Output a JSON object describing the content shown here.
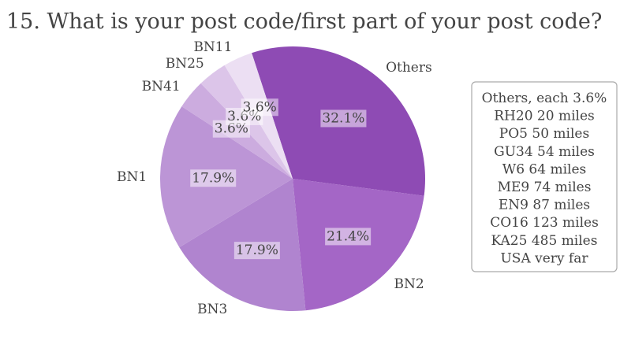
{
  "chart_data": {
    "type": "pie",
    "title": "15. What is your post code/first part of your post code?",
    "slices": [
      {
        "label": "Others",
        "value": 32.1,
        "pct_label": "32.1%",
        "color": "#8e4bb4"
      },
      {
        "label": "BN2",
        "value": 21.4,
        "pct_label": "21.4%",
        "color": "#a466c6"
      },
      {
        "label": "BN3",
        "value": 17.9,
        "pct_label": "17.9%",
        "color": "#b084cf"
      },
      {
        "label": "BN1",
        "value": 17.9,
        "pct_label": "17.9%",
        "color": "#bc95d6"
      },
      {
        "label": "BN41",
        "value": 3.6,
        "pct_label": "3.6%",
        "color": "#ccacdf"
      },
      {
        "label": "BN25",
        "value": 3.6,
        "pct_label": "3.6%",
        "color": "#dcc5e9"
      },
      {
        "label": "BN11",
        "value": 3.6,
        "pct_label": "3.6%",
        "color": "#ecdff3"
      }
    ],
    "start_angle_deg": 108,
    "direction": "clockwise",
    "annotation": [
      "Others, each 3.6%",
      "RH20 20 miles",
      "PO5 50 miles",
      "GU34 54 miles",
      "W6 64 miles",
      "ME9 74 miles",
      "EN9 87 miles",
      "CO16 123 miles",
      "KA25 485 miles",
      "USA very far"
    ]
  }
}
